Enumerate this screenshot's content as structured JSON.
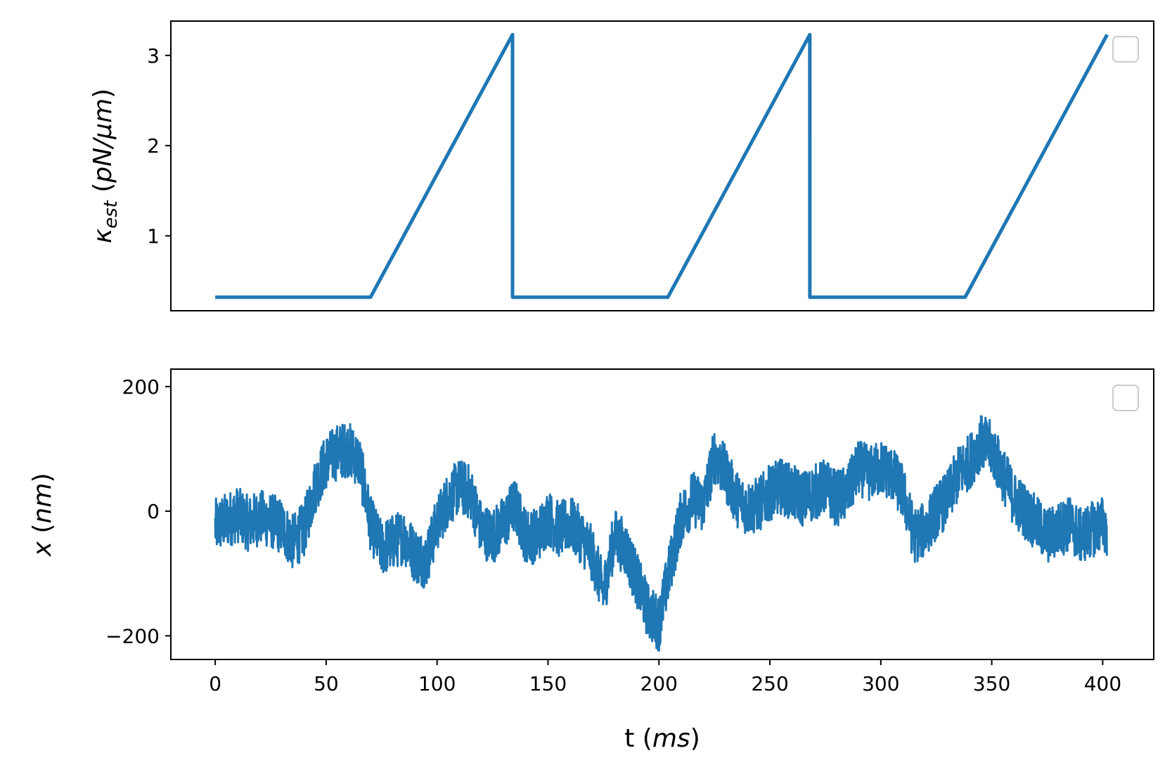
{
  "colors": {
    "series": "#1f77b4",
    "axes": "#000000",
    "legend_border": "#cccccc",
    "background": "#ffffff"
  },
  "chart_data": [
    {
      "type": "line",
      "panel": "top",
      "ylabel_parts": [
        "κ",
        "est",
        " (",
        "pN/μm",
        ")"
      ],
      "xlabel": "",
      "xlim": [
        -20,
        423
      ],
      "ylim": [
        0.17,
        3.38
      ],
      "yticks": [
        1,
        2,
        3
      ],
      "ytick_labels": [
        "1",
        "2",
        "3"
      ],
      "xticks_shown": false,
      "grid": false,
      "legend": {
        "placement": "top-right",
        "entries": []
      },
      "series": [
        {
          "x": [
            0,
            70,
            134,
            134.01,
            204,
            268,
            268.01,
            338,
            402
          ],
          "y": [
            0.32,
            0.32,
            3.23,
            0.32,
            0.32,
            3.23,
            0.32,
            0.32,
            3.23
          ]
        }
      ]
    },
    {
      "type": "line",
      "panel": "bottom",
      "xlabel_parts": [
        "t (",
        "ms",
        ")"
      ],
      "ylabel_parts": [
        "x",
        " (",
        "nm",
        ")"
      ],
      "xlim": [
        -20,
        423
      ],
      "ylim": [
        -238,
        228
      ],
      "xticks": [
        0,
        50,
        100,
        150,
        200,
        250,
        300,
        350,
        400
      ],
      "xtick_labels": [
        "0",
        "50",
        "100",
        "150",
        "200",
        "250",
        "300",
        "350",
        "400"
      ],
      "yticks": [
        -200,
        0,
        200
      ],
      "ytick_labels": [
        "−200",
        "0",
        "200"
      ],
      "grid": false,
      "legend": {
        "placement": "top-right",
        "entries": []
      },
      "series": [
        {
          "x": [
            0,
            5,
            10,
            15,
            20,
            25,
            30,
            35,
            40,
            45,
            50,
            55,
            60,
            65,
            70,
            75,
            80,
            85,
            90,
            95,
            100,
            105,
            110,
            115,
            120,
            125,
            130,
            135,
            140,
            145,
            150,
            155,
            160,
            165,
            170,
            175,
            180,
            185,
            190,
            195,
            200,
            205,
            210,
            215,
            220,
            225,
            230,
            235,
            240,
            245,
            250,
            255,
            260,
            265,
            270,
            275,
            280,
            285,
            290,
            295,
            300,
            305,
            310,
            315,
            320,
            325,
            330,
            335,
            340,
            345,
            350,
            355,
            360,
            365,
            370,
            375,
            380,
            385,
            390,
            395,
            400,
            402
          ],
          "y": [
            -25,
            -15,
            -5,
            -20,
            -10,
            -15,
            -25,
            -50,
            -30,
            40,
            80,
            95,
            100,
            80,
            -20,
            -60,
            -50,
            -40,
            -70,
            -80,
            -20,
            20,
            40,
            30,
            -30,
            -40,
            -20,
            10,
            -40,
            -40,
            -10,
            -30,
            -20,
            -40,
            -70,
            -130,
            -40,
            -60,
            -110,
            -160,
            -180,
            -90,
            -10,
            20,
            10,
            90,
            60,
            20,
            5,
            10,
            30,
            40,
            30,
            20,
            30,
            40,
            20,
            30,
            70,
            60,
            70,
            60,
            30,
            -40,
            -30,
            0,
            20,
            60,
            80,
            110,
            100,
            60,
            20,
            0,
            -20,
            -40,
            -30,
            -20,
            -40,
            -30,
            -20,
            -30
          ]
        }
      ]
    }
  ]
}
